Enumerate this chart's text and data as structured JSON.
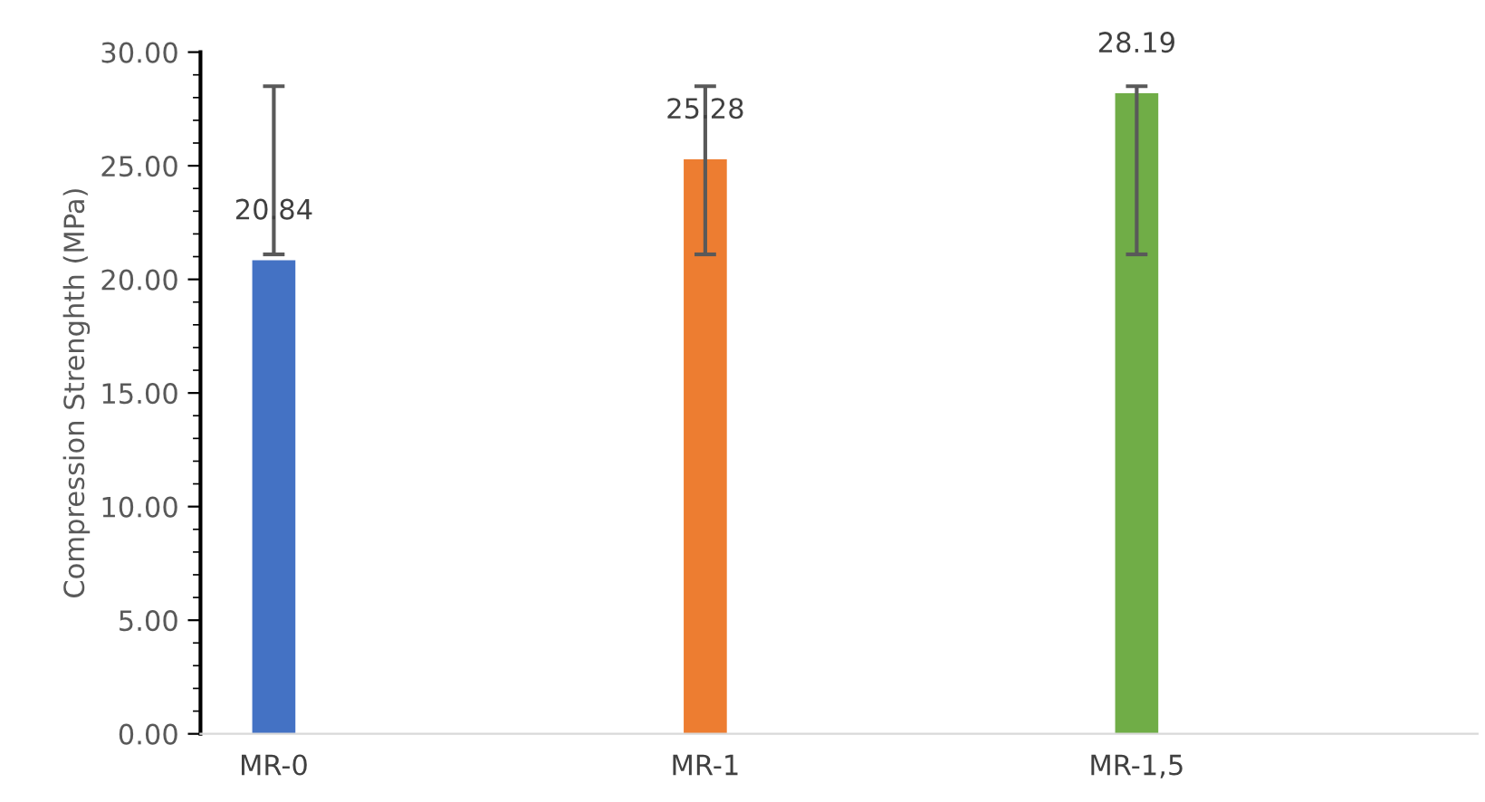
{
  "chart_data": {
    "type": "bar",
    "ylabel": "Compression Strenghth (MPa)",
    "categories": [
      "MR-0",
      "MR-1",
      "MR-1,5"
    ],
    "values": [
      20.84,
      25.28,
      28.19
    ],
    "colors": [
      "#4472c4",
      "#ed7d31",
      "#70ad47"
    ],
    "errors": [
      [
        21.1,
        28.5
      ],
      [
        21.1,
        28.5
      ],
      [
        21.1,
        28.5
      ]
    ],
    "data_labels": true,
    "ylim": [
      0,
      30
    ],
    "yticks": [
      {
        "value": 0,
        "label": "0.00"
      },
      {
        "value": 5,
        "label": "5.00"
      },
      {
        "value": 10,
        "label": "10.00"
      },
      {
        "value": 15,
        "label": "15.00"
      },
      {
        "value": 20,
        "label": "20.00"
      },
      {
        "value": 25,
        "label": "25.00"
      },
      {
        "value": 30,
        "label": "30.00"
      }
    ],
    "grid": false,
    "legend": false
  }
}
